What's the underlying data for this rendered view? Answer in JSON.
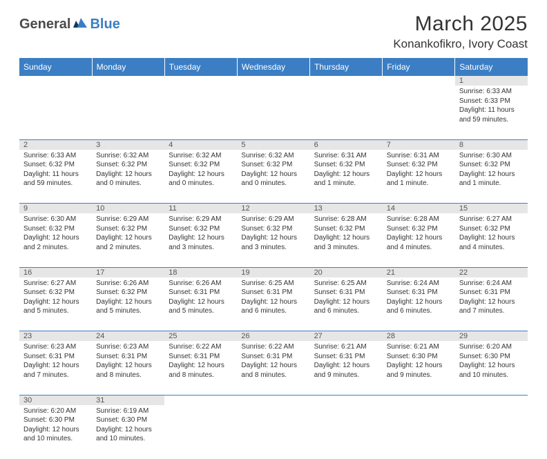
{
  "logo": {
    "general": "General",
    "blue": "Blue"
  },
  "header": {
    "month_title": "March 2025",
    "location": "Konankofikro, Ivory Coast"
  },
  "calendar": {
    "header_bg": "#3b7ec4",
    "header_fg": "#ffffff",
    "daynum_bg": "#e6e6e6",
    "border_color": "#3b7ec4",
    "days": [
      "Sunday",
      "Monday",
      "Tuesday",
      "Wednesday",
      "Thursday",
      "Friday",
      "Saturday"
    ],
    "weeks": [
      [
        null,
        null,
        null,
        null,
        null,
        null,
        {
          "n": "1",
          "sr": "Sunrise: 6:33 AM",
          "ss": "Sunset: 6:33 PM",
          "dl": "Daylight: 11 hours and 59 minutes."
        }
      ],
      [
        {
          "n": "2",
          "sr": "Sunrise: 6:33 AM",
          "ss": "Sunset: 6:32 PM",
          "dl": "Daylight: 11 hours and 59 minutes."
        },
        {
          "n": "3",
          "sr": "Sunrise: 6:32 AM",
          "ss": "Sunset: 6:32 PM",
          "dl": "Daylight: 12 hours and 0 minutes."
        },
        {
          "n": "4",
          "sr": "Sunrise: 6:32 AM",
          "ss": "Sunset: 6:32 PM",
          "dl": "Daylight: 12 hours and 0 minutes."
        },
        {
          "n": "5",
          "sr": "Sunrise: 6:32 AM",
          "ss": "Sunset: 6:32 PM",
          "dl": "Daylight: 12 hours and 0 minutes."
        },
        {
          "n": "6",
          "sr": "Sunrise: 6:31 AM",
          "ss": "Sunset: 6:32 PM",
          "dl": "Daylight: 12 hours and 1 minute."
        },
        {
          "n": "7",
          "sr": "Sunrise: 6:31 AM",
          "ss": "Sunset: 6:32 PM",
          "dl": "Daylight: 12 hours and 1 minute."
        },
        {
          "n": "8",
          "sr": "Sunrise: 6:30 AM",
          "ss": "Sunset: 6:32 PM",
          "dl": "Daylight: 12 hours and 1 minute."
        }
      ],
      [
        {
          "n": "9",
          "sr": "Sunrise: 6:30 AM",
          "ss": "Sunset: 6:32 PM",
          "dl": "Daylight: 12 hours and 2 minutes."
        },
        {
          "n": "10",
          "sr": "Sunrise: 6:29 AM",
          "ss": "Sunset: 6:32 PM",
          "dl": "Daylight: 12 hours and 2 minutes."
        },
        {
          "n": "11",
          "sr": "Sunrise: 6:29 AM",
          "ss": "Sunset: 6:32 PM",
          "dl": "Daylight: 12 hours and 3 minutes."
        },
        {
          "n": "12",
          "sr": "Sunrise: 6:29 AM",
          "ss": "Sunset: 6:32 PM",
          "dl": "Daylight: 12 hours and 3 minutes."
        },
        {
          "n": "13",
          "sr": "Sunrise: 6:28 AM",
          "ss": "Sunset: 6:32 PM",
          "dl": "Daylight: 12 hours and 3 minutes."
        },
        {
          "n": "14",
          "sr": "Sunrise: 6:28 AM",
          "ss": "Sunset: 6:32 PM",
          "dl": "Daylight: 12 hours and 4 minutes."
        },
        {
          "n": "15",
          "sr": "Sunrise: 6:27 AM",
          "ss": "Sunset: 6:32 PM",
          "dl": "Daylight: 12 hours and 4 minutes."
        }
      ],
      [
        {
          "n": "16",
          "sr": "Sunrise: 6:27 AM",
          "ss": "Sunset: 6:32 PM",
          "dl": "Daylight: 12 hours and 5 minutes."
        },
        {
          "n": "17",
          "sr": "Sunrise: 6:26 AM",
          "ss": "Sunset: 6:32 PM",
          "dl": "Daylight: 12 hours and 5 minutes."
        },
        {
          "n": "18",
          "sr": "Sunrise: 6:26 AM",
          "ss": "Sunset: 6:31 PM",
          "dl": "Daylight: 12 hours and 5 minutes."
        },
        {
          "n": "19",
          "sr": "Sunrise: 6:25 AM",
          "ss": "Sunset: 6:31 PM",
          "dl": "Daylight: 12 hours and 6 minutes."
        },
        {
          "n": "20",
          "sr": "Sunrise: 6:25 AM",
          "ss": "Sunset: 6:31 PM",
          "dl": "Daylight: 12 hours and 6 minutes."
        },
        {
          "n": "21",
          "sr": "Sunrise: 6:24 AM",
          "ss": "Sunset: 6:31 PM",
          "dl": "Daylight: 12 hours and 6 minutes."
        },
        {
          "n": "22",
          "sr": "Sunrise: 6:24 AM",
          "ss": "Sunset: 6:31 PM",
          "dl": "Daylight: 12 hours and 7 minutes."
        }
      ],
      [
        {
          "n": "23",
          "sr": "Sunrise: 6:23 AM",
          "ss": "Sunset: 6:31 PM",
          "dl": "Daylight: 12 hours and 7 minutes."
        },
        {
          "n": "24",
          "sr": "Sunrise: 6:23 AM",
          "ss": "Sunset: 6:31 PM",
          "dl": "Daylight: 12 hours and 8 minutes."
        },
        {
          "n": "25",
          "sr": "Sunrise: 6:22 AM",
          "ss": "Sunset: 6:31 PM",
          "dl": "Daylight: 12 hours and 8 minutes."
        },
        {
          "n": "26",
          "sr": "Sunrise: 6:22 AM",
          "ss": "Sunset: 6:31 PM",
          "dl": "Daylight: 12 hours and 8 minutes."
        },
        {
          "n": "27",
          "sr": "Sunrise: 6:21 AM",
          "ss": "Sunset: 6:31 PM",
          "dl": "Daylight: 12 hours and 9 minutes."
        },
        {
          "n": "28",
          "sr": "Sunrise: 6:21 AM",
          "ss": "Sunset: 6:30 PM",
          "dl": "Daylight: 12 hours and 9 minutes."
        },
        {
          "n": "29",
          "sr": "Sunrise: 6:20 AM",
          "ss": "Sunset: 6:30 PM",
          "dl": "Daylight: 12 hours and 10 minutes."
        }
      ],
      [
        {
          "n": "30",
          "sr": "Sunrise: 6:20 AM",
          "ss": "Sunset: 6:30 PM",
          "dl": "Daylight: 12 hours and 10 minutes."
        },
        {
          "n": "31",
          "sr": "Sunrise: 6:19 AM",
          "ss": "Sunset: 6:30 PM",
          "dl": "Daylight: 12 hours and 10 minutes."
        },
        null,
        null,
        null,
        null,
        null
      ]
    ]
  }
}
